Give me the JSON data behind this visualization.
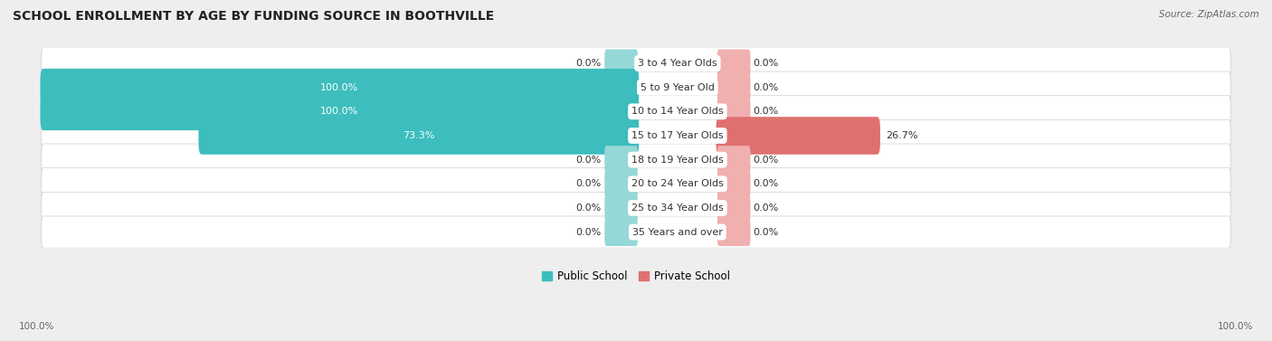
{
  "title": "SCHOOL ENROLLMENT BY AGE BY FUNDING SOURCE IN BOOTHVILLE",
  "source": "Source: ZipAtlas.com",
  "categories": [
    "3 to 4 Year Olds",
    "5 to 9 Year Old",
    "10 to 14 Year Olds",
    "15 to 17 Year Olds",
    "18 to 19 Year Olds",
    "20 to 24 Year Olds",
    "25 to 34 Year Olds",
    "35 Years and over"
  ],
  "public_values": [
    0.0,
    100.0,
    100.0,
    73.3,
    0.0,
    0.0,
    0.0,
    0.0
  ],
  "private_values": [
    0.0,
    0.0,
    0.0,
    26.7,
    0.0,
    0.0,
    0.0,
    0.0
  ],
  "public_color": "#3dbdbd",
  "private_color": "#e07070",
  "public_color_light": "#96d8d8",
  "private_color_light": "#f0b0b0",
  "bg_color": "#eeeeee",
  "row_bg": "#ffffff",
  "title_fontsize": 10,
  "label_fontsize": 8,
  "legend_fontsize": 8.5,
  "axis_label_fontsize": 7.5,
  "stub_size": 5.0
}
